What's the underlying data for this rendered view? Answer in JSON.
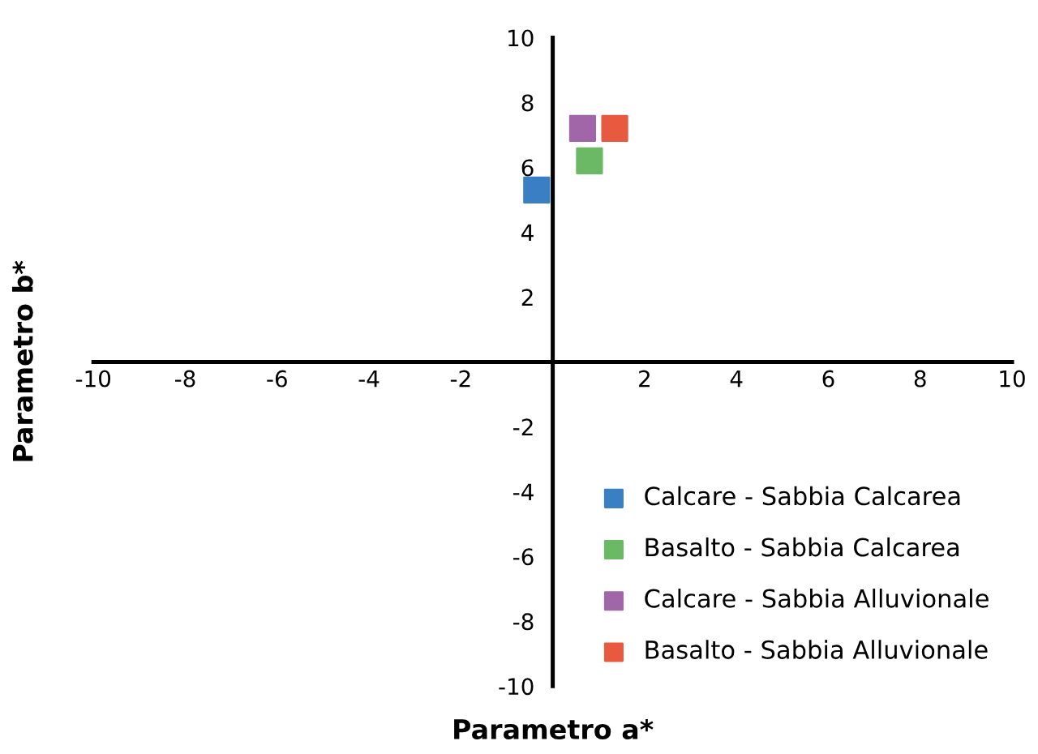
{
  "chart_data": {
    "type": "scatter",
    "xlabel": "Parametro a*",
    "ylabel": "Parametro b*",
    "xlim": [
      -10,
      10
    ],
    "ylim": [
      -10,
      10
    ],
    "xticks": [
      -10,
      -8,
      -6,
      -4,
      -2,
      2,
      4,
      6,
      8,
      10
    ],
    "yticks": [
      -10,
      -8,
      -6,
      -4,
      -2,
      2,
      4,
      6,
      8,
      10
    ],
    "grid": false,
    "legend": "bottom right",
    "marker": "square",
    "series": [
      {
        "name": "Calcare - Sabbia Calcarea",
        "color": "#3a7fc4",
        "x": [
          -0.35
        ],
        "values": [
          5.3
        ]
      },
      {
        "name": "Basalto - Sabbia Calcarea",
        "color": "#6bb865",
        "x": [
          0.8
        ],
        "values": [
          6.2
        ]
      },
      {
        "name": "Calcare - Sabbia Alluvionale",
        "color": "#a066a8",
        "x": [
          0.65
        ],
        "values": [
          7.2
        ]
      },
      {
        "name": "Basalto - Sabbia Alluvionale",
        "color": "#e85a40",
        "x": [
          1.35
        ],
        "values": [
          7.2
        ]
      }
    ]
  }
}
